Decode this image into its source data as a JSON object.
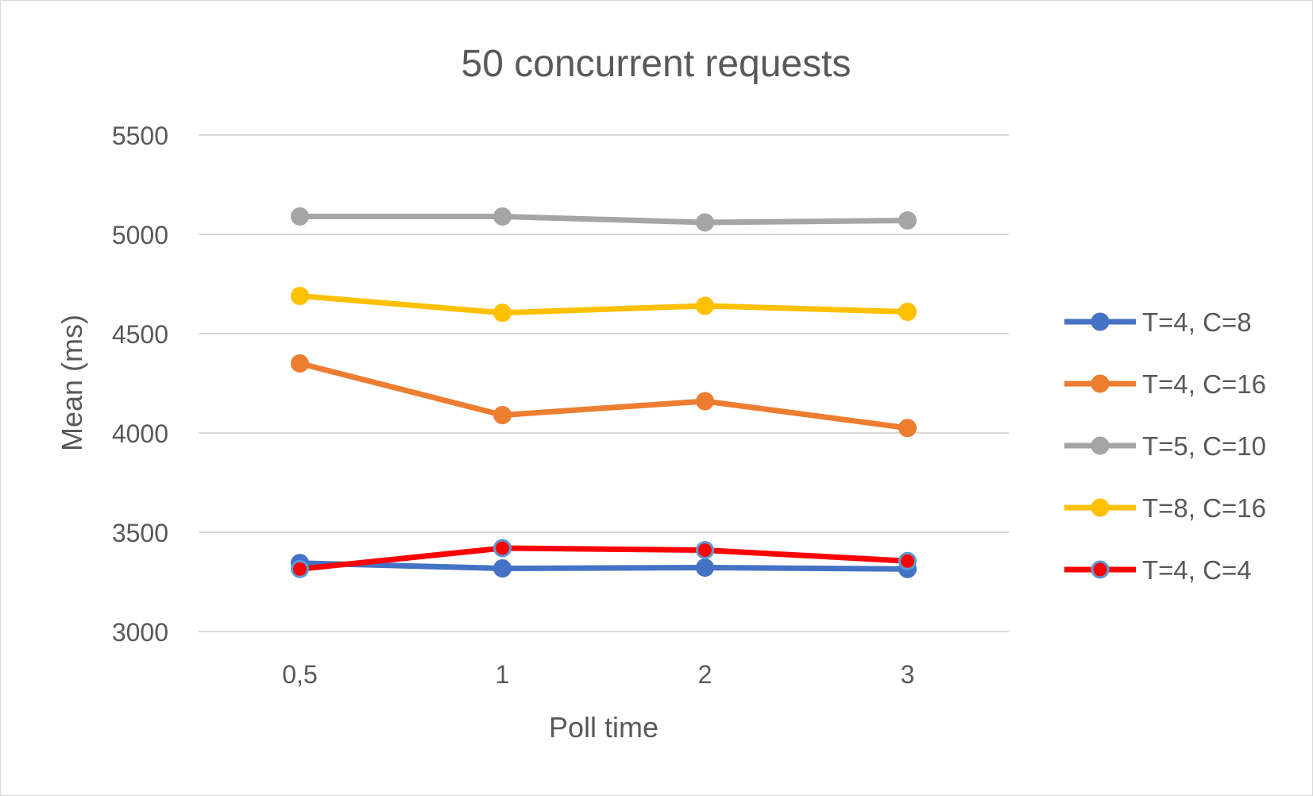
{
  "chart_data": {
    "type": "line",
    "title": "50 concurrent requests",
    "xlabel": "Poll time",
    "ylabel": "Mean (ms)",
    "categories": [
      "0,5",
      "1",
      "2",
      "3"
    ],
    "ylim": [
      3000,
      5500
    ],
    "yticks": [
      "3000",
      "3500",
      "4000",
      "4500",
      "5000",
      "5500"
    ],
    "grid": true,
    "legend_position": "right",
    "series": [
      {
        "name": "T=4, C=8",
        "values": [
          3345,
          3318,
          3322,
          3315
        ],
        "color": "#4472c4",
        "marker": "circle"
      },
      {
        "name": "T=4, C=16",
        "values": [
          4350,
          4090,
          4160,
          4025
        ],
        "color": "#ed7d31",
        "marker": "circle"
      },
      {
        "name": "T=5, C=10",
        "values": [
          5090,
          5090,
          5060,
          5070
        ],
        "color": "#a5a5a5",
        "marker": "circle"
      },
      {
        "name": "T=8, C=16",
        "values": [
          4690,
          4605,
          4640,
          4610
        ],
        "color": "#ffc000",
        "marker": "circle"
      },
      {
        "name": "T=4, C=4",
        "values": [
          3315,
          3420,
          3410,
          3355
        ],
        "color": "#ff0000",
        "marker": "circle-outlined",
        "marker_edge": "#5b9bd5"
      }
    ]
  }
}
